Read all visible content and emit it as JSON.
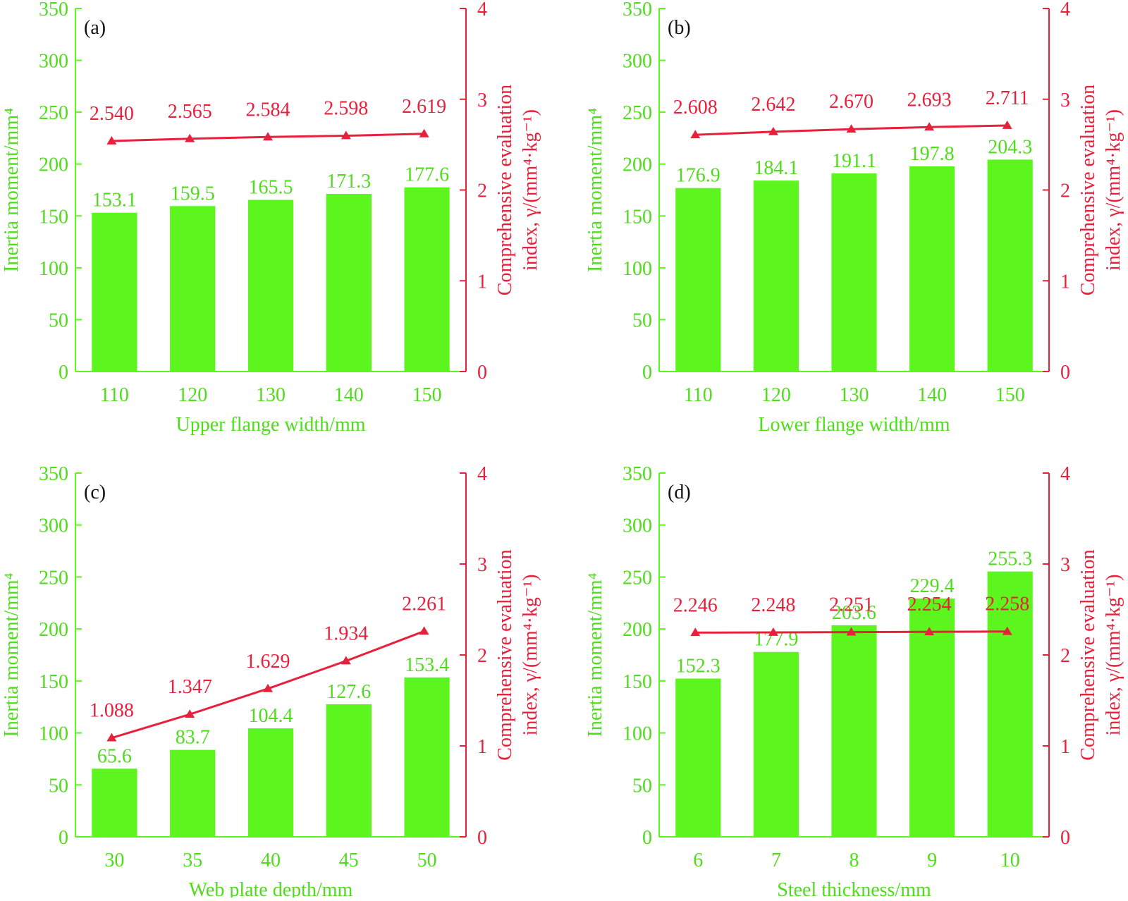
{
  "colors": {
    "bar": "#5cf51e",
    "line": "#e8203c",
    "bar_text": "#4fdc1c",
    "line_text": "#e8203c"
  },
  "chart_data": [
    {
      "type": "bar",
      "panel": "(a)",
      "xlabel": "Upper flange width/mm",
      "ylabel": "Inertia moment/mm⁴",
      "y2label_line1": "Comprehensive evaluation",
      "y2label_line2": "index, γ/(mm⁴·kg⁻¹)",
      "categories": [
        "110",
        "120",
        "130",
        "140",
        "150"
      ],
      "ylim": [
        0,
        350
      ],
      "yticks": [
        0,
        50,
        100,
        150,
        200,
        250,
        300,
        350
      ],
      "y2lim": [
        0,
        4
      ],
      "y2ticks": [
        0,
        1,
        2,
        3,
        4
      ],
      "bar_values": [
        153.1,
        159.5,
        165.5,
        171.3,
        177.6
      ],
      "bar_labels": [
        "153.1",
        "159.5",
        "165.5",
        "171.3",
        "177.6"
      ],
      "line_values": [
        2.54,
        2.565,
        2.584,
        2.598,
        2.619
      ],
      "line_labels": [
        "2.540",
        "2.565",
        "2.584",
        "2.598",
        "2.619"
      ]
    },
    {
      "type": "bar",
      "panel": "(b)",
      "xlabel": "Lower flange width/mm",
      "ylabel": "Inertia moment/mm⁴",
      "y2label_line1": "Comprehensive evaluation",
      "y2label_line2": "index, γ/(mm⁴·kg⁻¹)",
      "categories": [
        "110",
        "120",
        "130",
        "140",
        "150"
      ],
      "ylim": [
        0,
        350
      ],
      "yticks": [
        0,
        50,
        100,
        150,
        200,
        250,
        300,
        350
      ],
      "y2lim": [
        0,
        4
      ],
      "y2ticks": [
        0,
        1,
        2,
        3,
        4
      ],
      "bar_values": [
        176.9,
        184.1,
        191.1,
        197.8,
        204.3
      ],
      "bar_labels": [
        "176.9",
        "184.1",
        "191.1",
        "197.8",
        "204.3"
      ],
      "line_values": [
        2.608,
        2.642,
        2.67,
        2.693,
        2.711
      ],
      "line_labels": [
        "2.608",
        "2.642",
        "2.670",
        "2.693",
        "2.711"
      ]
    },
    {
      "type": "bar",
      "panel": "(c)",
      "xlabel": "Web plate depth/mm",
      "ylabel": "Inertia moment/mm⁴",
      "y2label_line1": "Comprehensive evaluation",
      "y2label_line2": "index, γ/(mm⁴·kg⁻¹)",
      "categories": [
        "30",
        "35",
        "40",
        "45",
        "50"
      ],
      "ylim": [
        0,
        350
      ],
      "yticks": [
        0,
        50,
        100,
        150,
        200,
        250,
        300,
        350
      ],
      "y2lim": [
        0,
        4
      ],
      "y2ticks": [
        0,
        1,
        2,
        3,
        4
      ],
      "bar_values": [
        65.6,
        83.7,
        104.4,
        127.6,
        153.4
      ],
      "bar_labels": [
        "65.6",
        "83.7",
        "104.4",
        "127.6",
        "153.4"
      ],
      "line_values": [
        1.088,
        1.347,
        1.629,
        1.934,
        2.261
      ],
      "line_labels": [
        "1.088",
        "1.347",
        "1.629",
        "1.934",
        "2.261"
      ]
    },
    {
      "type": "bar",
      "panel": "(d)",
      "xlabel": "Steel thickness/mm",
      "ylabel": "Inertia moment/mm⁴",
      "y2label_line1": "Comprehensive evaluation",
      "y2label_line2": "index, γ/(mm⁴·kg⁻¹)",
      "categories": [
        "6",
        "7",
        "8",
        "9",
        "10"
      ],
      "ylim": [
        0,
        350
      ],
      "yticks": [
        0,
        50,
        100,
        150,
        200,
        250,
        300,
        350
      ],
      "y2lim": [
        0,
        4
      ],
      "y2ticks": [
        0,
        1,
        2,
        3,
        4
      ],
      "bar_values": [
        152.3,
        177.9,
        203.6,
        229.4,
        255.3
      ],
      "bar_labels": [
        "152.3",
        "177.9",
        "203.6",
        "229.4",
        "255.3"
      ],
      "line_values": [
        2.246,
        2.248,
        2.251,
        2.254,
        2.258
      ],
      "line_labels": [
        "2.246",
        "2.248",
        "2.251",
        "2.254",
        "2.258"
      ]
    }
  ]
}
